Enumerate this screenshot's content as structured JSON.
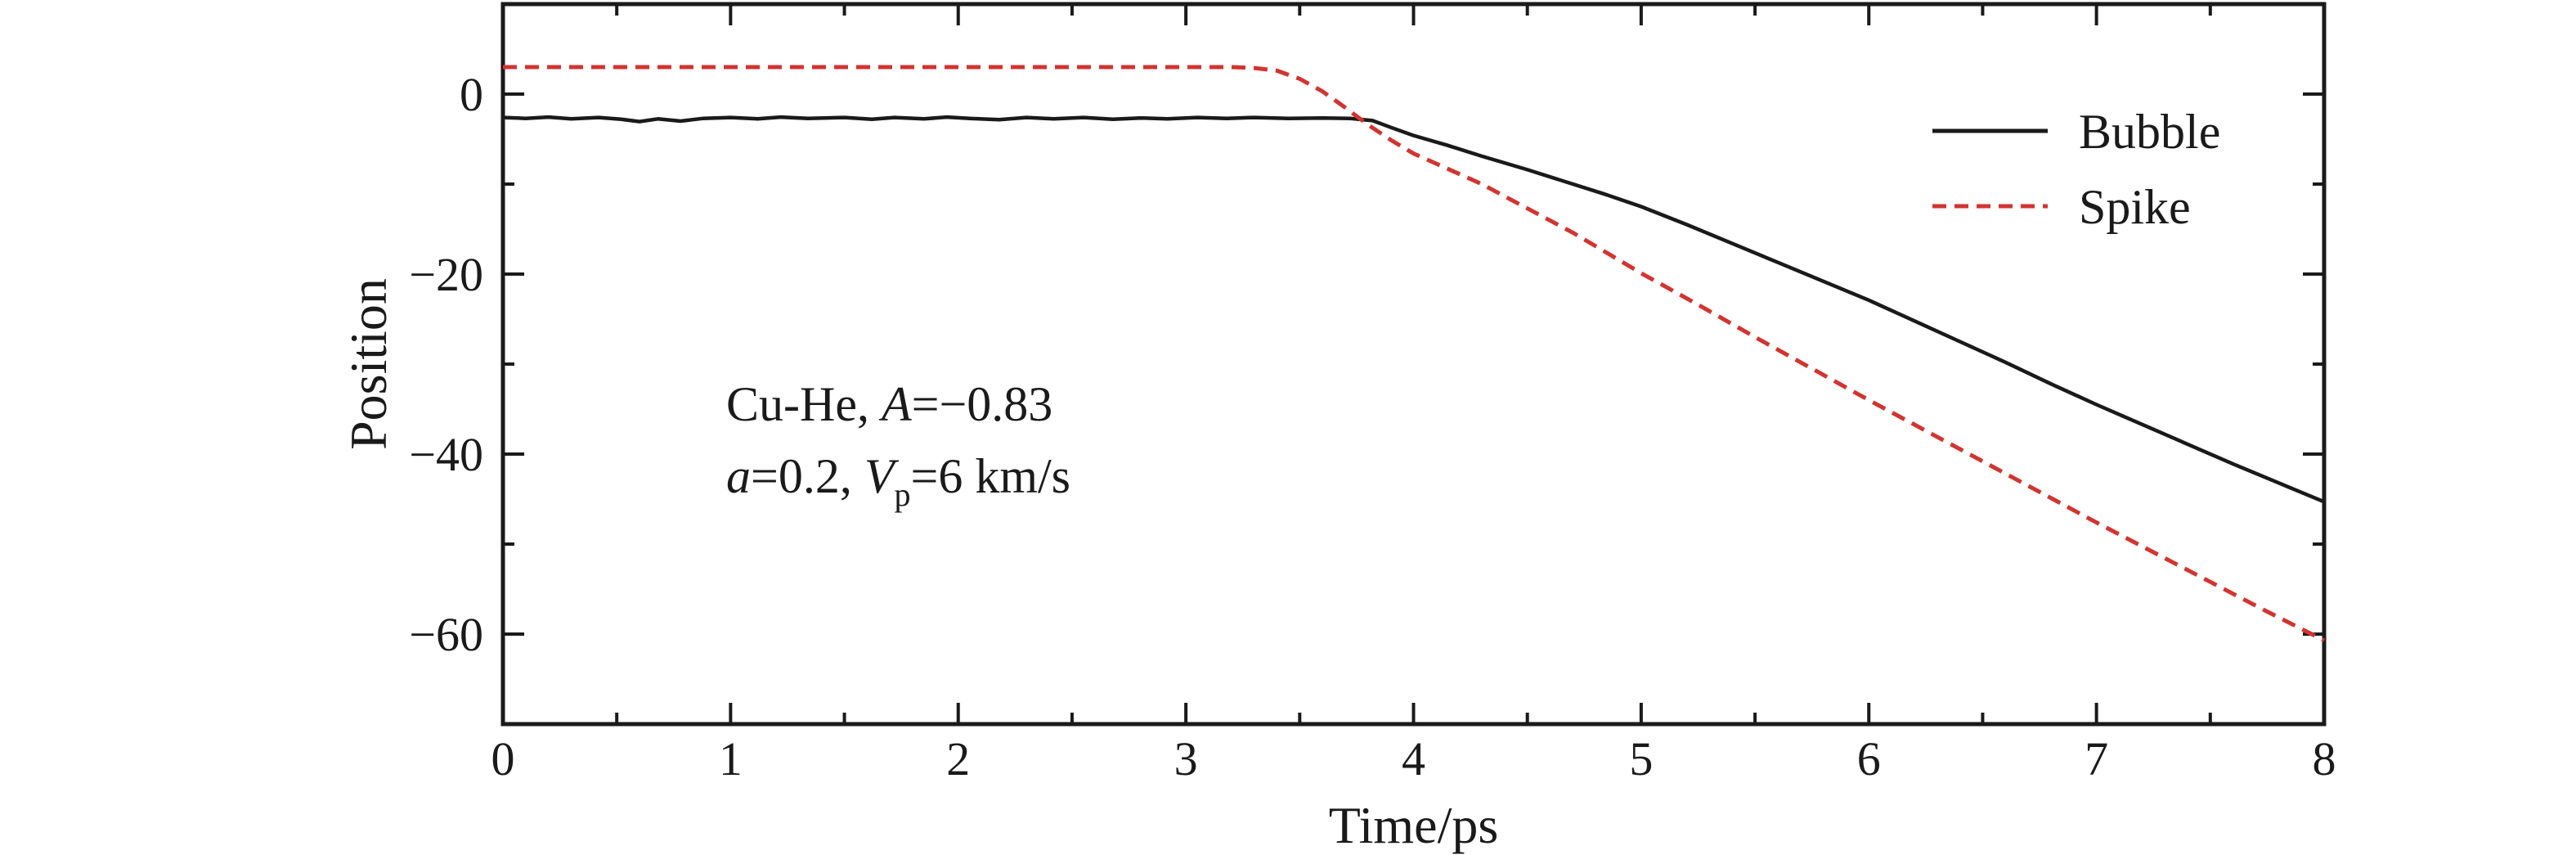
{
  "figure": {
    "background": "#ffffff",
    "axis_color": "#1a1a1a",
    "series_black": "#1a1a1a",
    "series_red": "#d23430"
  },
  "chart_data": {
    "type": "line",
    "title": "",
    "xlabel": "Time/ps",
    "ylabel": "Position",
    "xlim": [
      0,
      8
    ],
    "ylim": [
      -70,
      10
    ],
    "grid": false,
    "x_major_ticks": [
      0,
      1,
      2,
      3,
      4,
      5,
      6,
      7,
      8
    ],
    "x_tick_labels": [
      "0",
      "1",
      "2",
      "3",
      "4",
      "5",
      "6",
      "7",
      "8"
    ],
    "x_minor_ticks": [
      0.5,
      1.5,
      2.5,
      3.5,
      4.5,
      5.5,
      6.5,
      7.5
    ],
    "y_major_ticks": [
      0,
      -20,
      -40,
      -60
    ],
    "y_tick_labels": [
      "0",
      "−20",
      "−40",
      "−60"
    ],
    "y_minor_ticks": [
      -10,
      -30,
      -50
    ],
    "legend": {
      "position": "upper right",
      "entries": [
        {
          "label": "Bubble",
          "color": "#1a1a1a",
          "dash": "solid"
        },
        {
          "label": "Spike",
          "color": "#d23430",
          "dash": "dashed"
        }
      ]
    },
    "annotation": {
      "lines": [
        {
          "plain": "Cu-He, A=−0.83",
          "segments": [
            {
              "t": "Cu-He, "
            },
            {
              "t": "A",
              "i": 1
            },
            {
              "t": "=−0.83"
            }
          ]
        },
        {
          "plain": "a=0.2, Vp=6 km/s",
          "segments": [
            {
              "t": "a",
              "i": 1
            },
            {
              "t": "=0.2, "
            },
            {
              "t": "V",
              "i": 1
            },
            {
              "t": "p",
              "sub": 1
            },
            {
              "t": "=6 km/s"
            }
          ]
        }
      ]
    },
    "series": [
      {
        "name": "Bubble",
        "color": "#1a1a1a",
        "style": "solid",
        "width": 4.5,
        "points": [
          [
            0.0,
            -2.6
          ],
          [
            0.1,
            -2.7
          ],
          [
            0.2,
            -2.55
          ],
          [
            0.3,
            -2.75
          ],
          [
            0.42,
            -2.6
          ],
          [
            0.52,
            -2.8
          ],
          [
            0.6,
            -3.05
          ],
          [
            0.68,
            -2.75
          ],
          [
            0.78,
            -3.0
          ],
          [
            0.88,
            -2.7
          ],
          [
            1.0,
            -2.6
          ],
          [
            1.12,
            -2.75
          ],
          [
            1.22,
            -2.55
          ],
          [
            1.34,
            -2.7
          ],
          [
            1.5,
            -2.6
          ],
          [
            1.62,
            -2.8
          ],
          [
            1.72,
            -2.6
          ],
          [
            1.85,
            -2.75
          ],
          [
            1.95,
            -2.55
          ],
          [
            2.05,
            -2.7
          ],
          [
            2.18,
            -2.85
          ],
          [
            2.3,
            -2.6
          ],
          [
            2.42,
            -2.75
          ],
          [
            2.55,
            -2.6
          ],
          [
            2.68,
            -2.8
          ],
          [
            2.8,
            -2.65
          ],
          [
            2.92,
            -2.75
          ],
          [
            3.05,
            -2.6
          ],
          [
            3.18,
            -2.7
          ],
          [
            3.3,
            -2.6
          ],
          [
            3.45,
            -2.7
          ],
          [
            3.6,
            -2.65
          ],
          [
            3.72,
            -2.7
          ],
          [
            3.82,
            -2.95
          ],
          [
            3.9,
            -3.7
          ],
          [
            4.0,
            -4.6
          ],
          [
            4.15,
            -5.7
          ],
          [
            4.3,
            -6.9
          ],
          [
            4.5,
            -8.4
          ],
          [
            4.7,
            -10.0
          ],
          [
            4.85,
            -11.2
          ],
          [
            5.0,
            -12.5
          ],
          [
            5.2,
            -14.5
          ],
          [
            5.4,
            -16.6
          ],
          [
            5.6,
            -18.7
          ],
          [
            5.8,
            -20.8
          ],
          [
            6.0,
            -22.9
          ],
          [
            6.2,
            -25.2
          ],
          [
            6.4,
            -27.5
          ],
          [
            6.6,
            -29.8
          ],
          [
            6.8,
            -32.2
          ],
          [
            7.0,
            -34.5
          ],
          [
            7.2,
            -36.7
          ],
          [
            7.4,
            -38.9
          ],
          [
            7.6,
            -41.1
          ],
          [
            7.8,
            -43.2
          ],
          [
            8.0,
            -45.3
          ]
        ]
      },
      {
        "name": "Spike",
        "color": "#d23430",
        "style": "dashed",
        "width": 5,
        "points": [
          [
            0.0,
            3.0
          ],
          [
            0.5,
            3.0
          ],
          [
            1.0,
            3.0
          ],
          [
            1.5,
            3.0
          ],
          [
            2.0,
            3.0
          ],
          [
            2.5,
            3.0
          ],
          [
            3.0,
            3.0
          ],
          [
            3.2,
            3.0
          ],
          [
            3.3,
            2.9
          ],
          [
            3.4,
            2.6
          ],
          [
            3.5,
            1.7
          ],
          [
            3.6,
            0.3
          ],
          [
            3.7,
            -1.5
          ],
          [
            3.8,
            -3.4
          ],
          [
            3.9,
            -5.1
          ],
          [
            4.0,
            -6.6
          ],
          [
            4.15,
            -8.3
          ],
          [
            4.3,
            -10.0
          ],
          [
            4.5,
            -12.7
          ],
          [
            4.7,
            -15.4
          ],
          [
            5.0,
            -19.9
          ],
          [
            5.25,
            -23.4
          ],
          [
            5.5,
            -27.0
          ],
          [
            5.75,
            -30.5
          ],
          [
            6.0,
            -34.0
          ],
          [
            6.25,
            -37.4
          ],
          [
            6.5,
            -40.8
          ],
          [
            6.75,
            -44.2
          ],
          [
            7.0,
            -47.6
          ],
          [
            7.25,
            -50.9
          ],
          [
            7.5,
            -54.2
          ],
          [
            7.75,
            -57.5
          ],
          [
            8.0,
            -60.7
          ]
        ]
      }
    ]
  }
}
